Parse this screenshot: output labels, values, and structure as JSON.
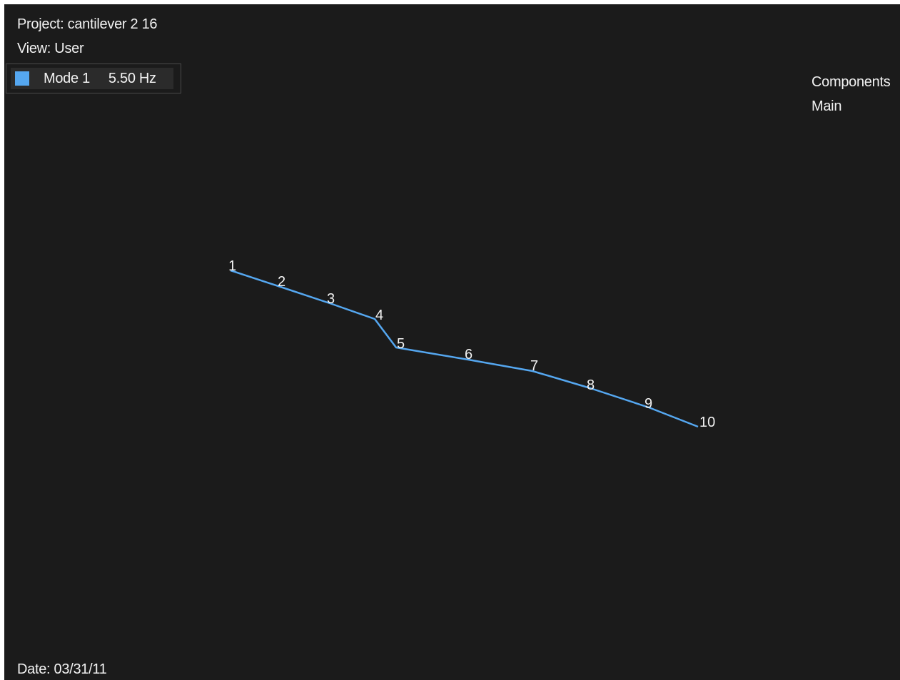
{
  "header": {
    "project": "Project: cantilever 2 16",
    "view": "View: User"
  },
  "mode": {
    "label": "Mode 1",
    "frequency": "5.50 Hz",
    "color": "#55a7f0"
  },
  "components_panel": {
    "title": "Components",
    "items": [
      "Main"
    ]
  },
  "footer": {
    "date": "Date: 03/31/11"
  },
  "shape": {
    "line_color": "#55a7f0",
    "nodes": [
      {
        "label": "1"
      },
      {
        "label": "2"
      },
      {
        "label": "3"
      },
      {
        "label": "4"
      },
      {
        "label": "5"
      },
      {
        "label": "6"
      },
      {
        "label": "7"
      },
      {
        "label": "8"
      },
      {
        "label": "9"
      },
      {
        "label": "10"
      }
    ]
  }
}
